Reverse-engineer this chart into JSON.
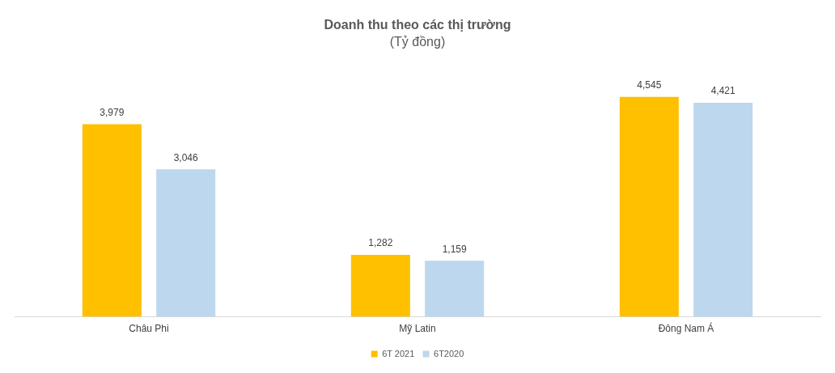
{
  "chart_data": {
    "type": "bar",
    "title": "Doanh thu theo các thị trường",
    "subtitle": "(Tỷ đồng)",
    "categories": [
      "Châu Phi",
      "Mỹ Latin",
      "Đông Nam Á"
    ],
    "series": [
      {
        "name": "6T 2021",
        "color": "#ffc000",
        "values": [
          3979,
          1282,
          4545
        ],
        "value_labels": [
          "3,979",
          "1,282",
          "4,545"
        ]
      },
      {
        "name": "6T2020",
        "color": "#bdd7ee",
        "values": [
          3046,
          1159,
          4421
        ],
        "value_labels": [
          "3,046",
          "1,159",
          "4,421"
        ]
      }
    ],
    "legend": "bottom",
    "grid": false
  }
}
